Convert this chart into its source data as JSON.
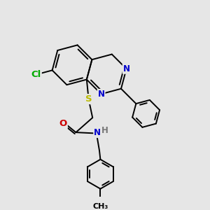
{
  "bg_color": "#e6e6e6",
  "bond_color": "#000000",
  "bond_width": 1.4,
  "atom_colors": {
    "N": "#0000cc",
    "O": "#cc0000",
    "S": "#bbbb00",
    "Cl": "#00aa00",
    "H": "#777777"
  },
  "font_size": 8.5,
  "fig_size": [
    3.0,
    3.0
  ],
  "dpi": 100
}
